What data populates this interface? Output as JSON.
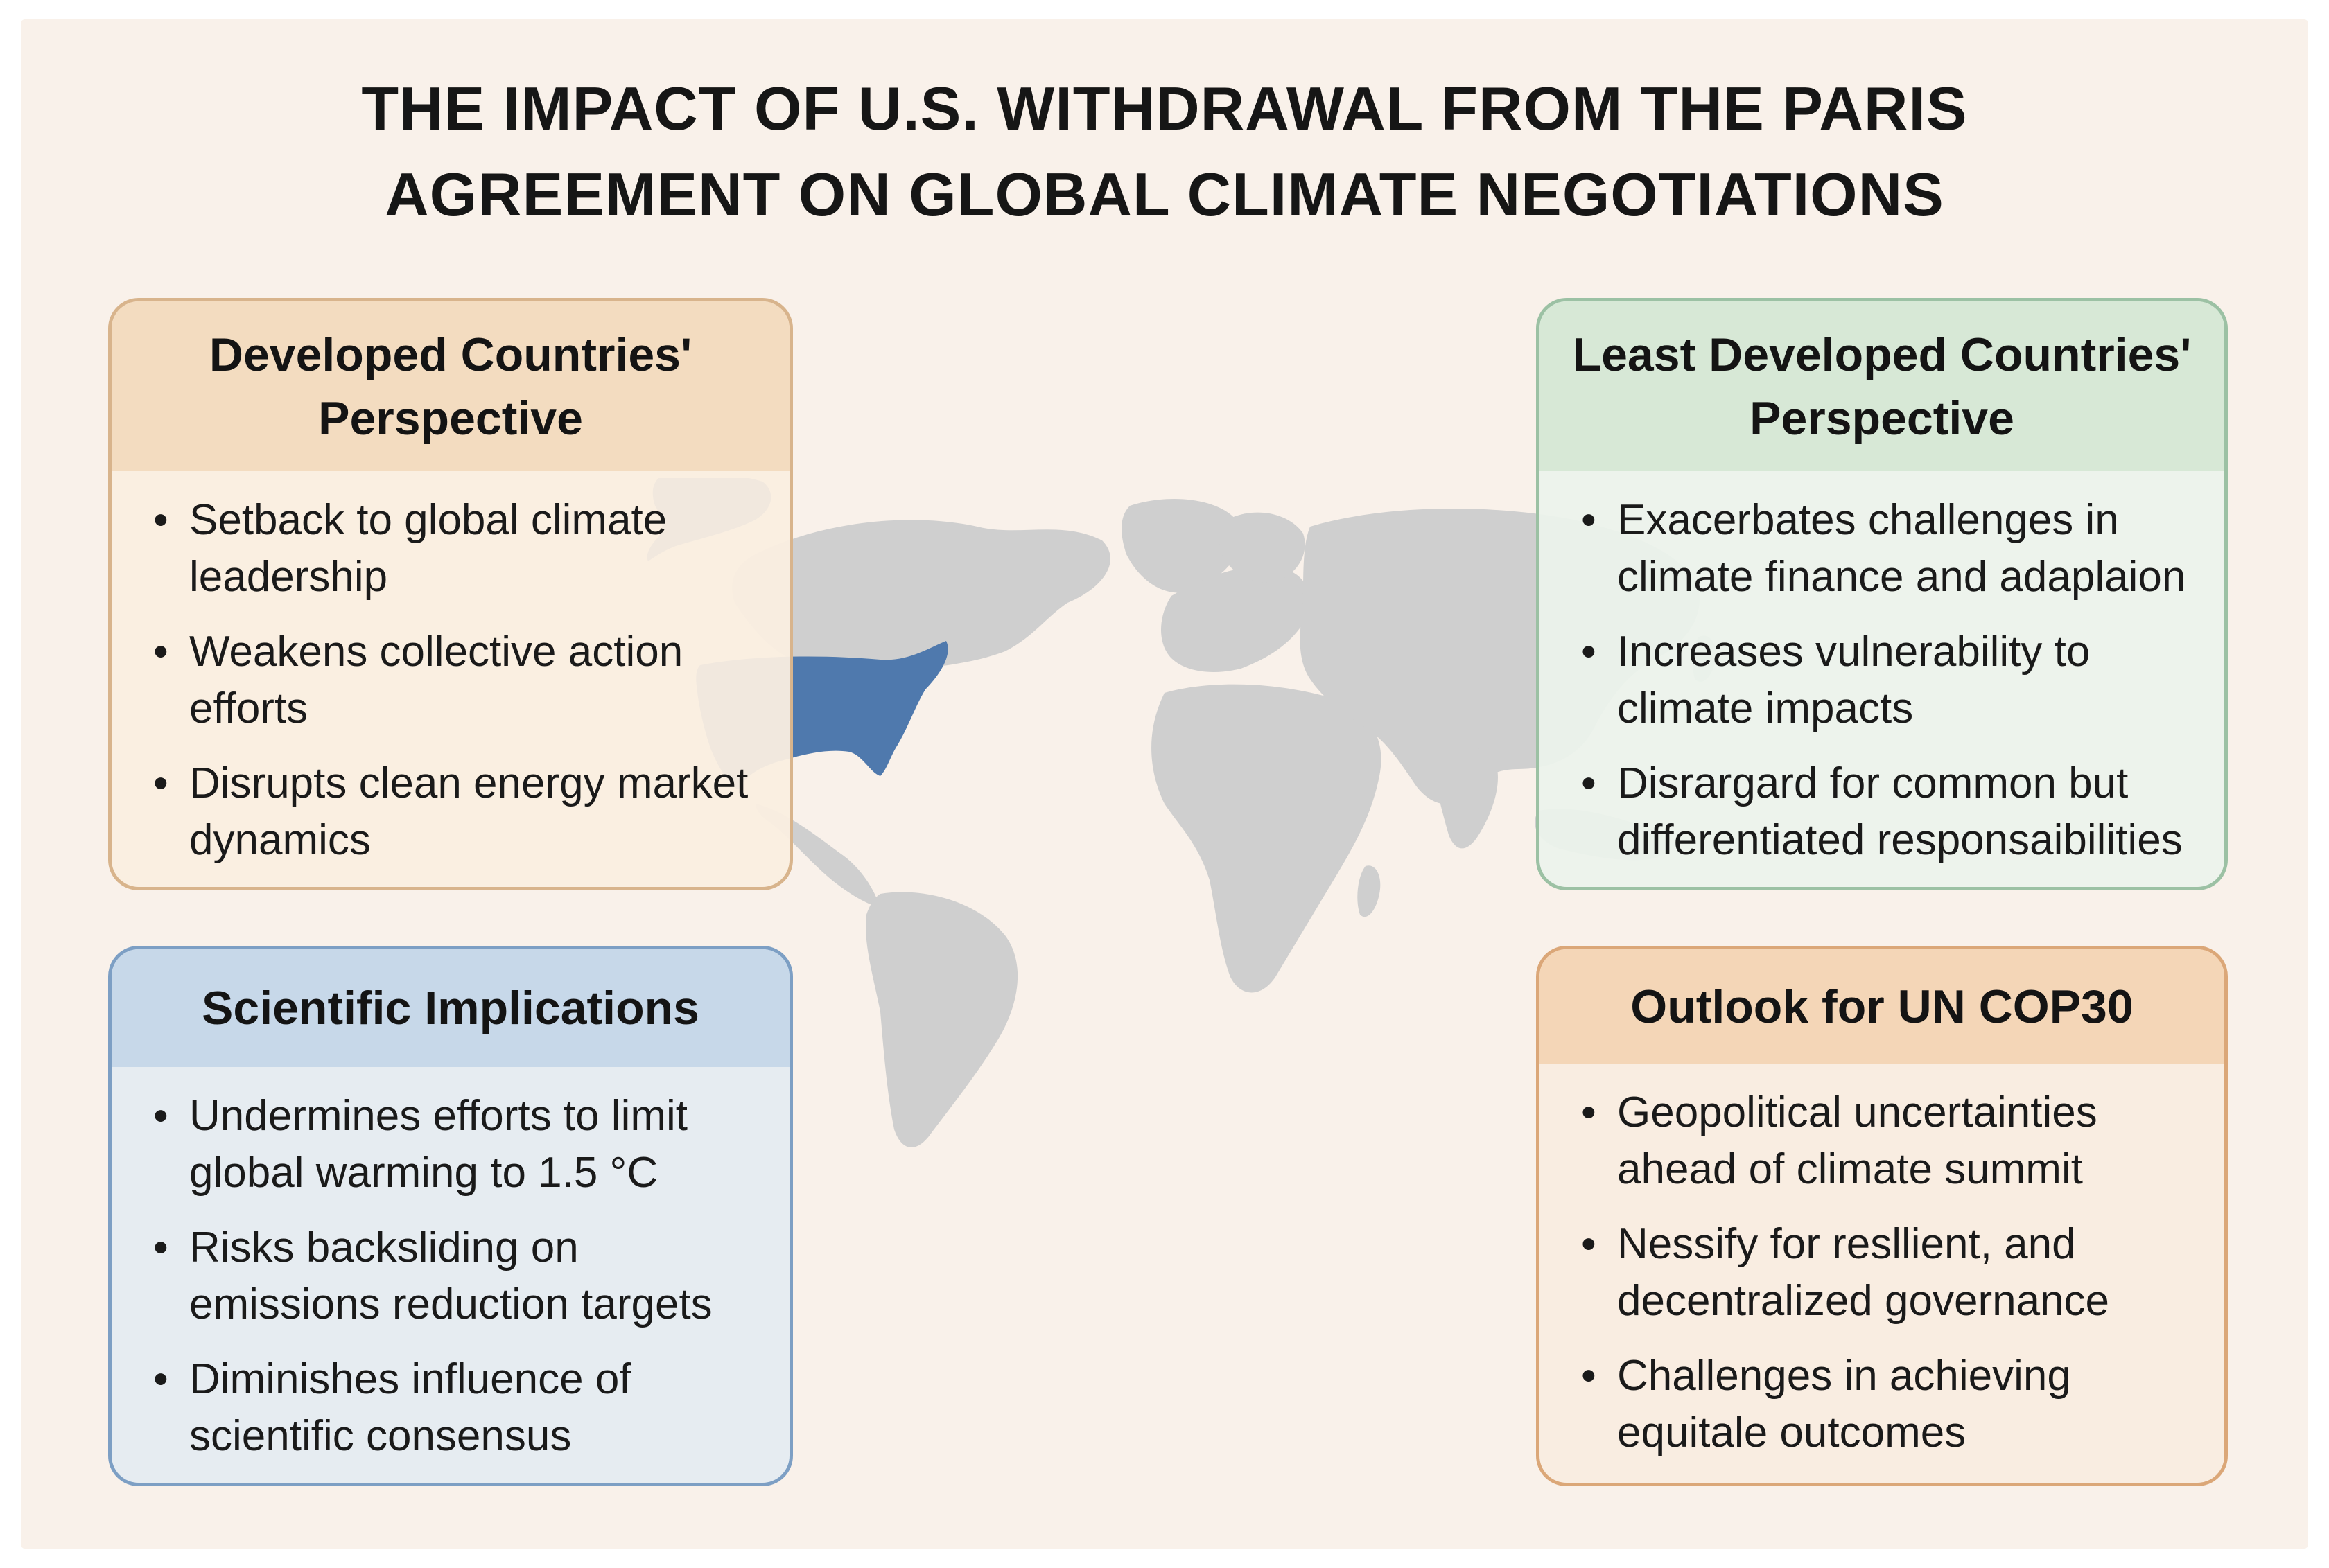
{
  "title": {
    "line1": "THE IMPACT OF U.S. WITHDRAWAL FROM THE PARIS",
    "line2": "AGREEMENT ON GLOBAL CLIMATE NEGOTIATIONS"
  },
  "colors": {
    "land": "#cfcfcf",
    "highlight": "#4f79ad",
    "background": "#f9f1ea"
  },
  "map": {
    "highlighted_region": "United States and Alaska",
    "icon": "world-map"
  },
  "panels": {
    "developed": {
      "title_line1": "Developed Countries'",
      "title_line2": "Perspective",
      "items": [
        "Setback to global climate leadership",
        "Weakens collective action efforts",
        "Disrupts clean energy market dynamics"
      ]
    },
    "least_developed": {
      "title_line1": "Least Developed Countries'",
      "title_line2": "Perspective",
      "items": [
        "Exacerbates challenges in climate finance and adaplaion",
        "Increases vulnerability to climate impacts",
        "Disrargard for common but differentiated responsaibilities"
      ]
    },
    "scientific": {
      "title": "Scientific Implications",
      "items": [
        "Undermines efforts to limit global warming to 1.5 °C",
        "Risks backsliding on emissions reduction targets",
        "Diminishes influence of scientific consensus"
      ]
    },
    "outlook": {
      "title": "Outlook for UN COP30",
      "items": [
        "Geopolitical uncertainties ahead of climate summit",
        "Nessify for resllient, and decentralized governance",
        "Challenges in achieving equitale outcomes"
      ]
    },
    "bullet": "•"
  }
}
